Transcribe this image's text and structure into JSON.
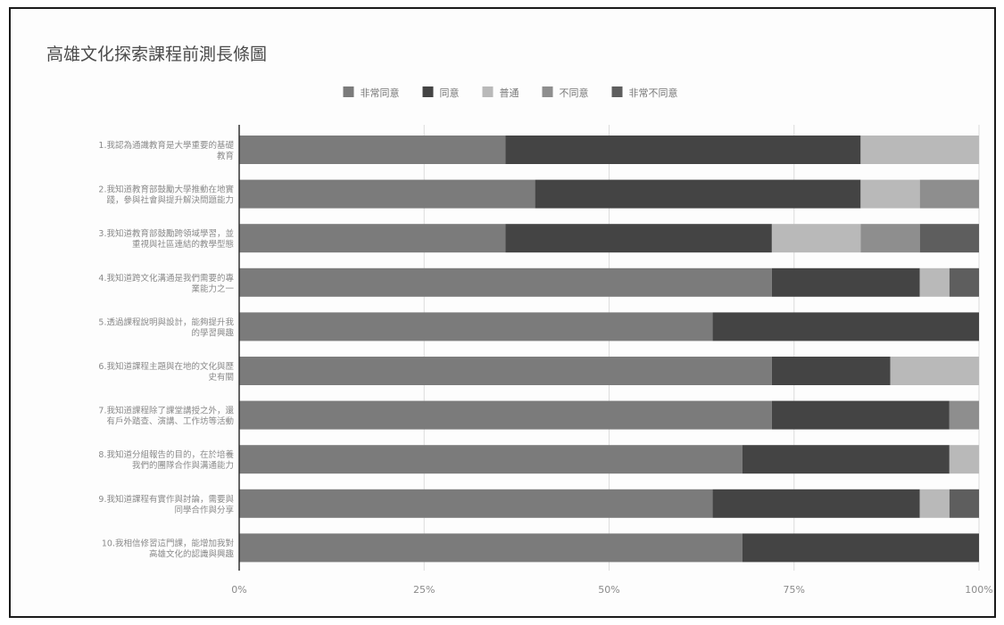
{
  "chart_data": {
    "type": "bar",
    "stacked": true,
    "percent_stacked": true,
    "orientation": "horizontal",
    "title": "高雄文化探索課程前測長條圖",
    "legend_position": "top",
    "grid": true,
    "xlim": [
      0,
      100
    ],
    "x_ticks": [
      "0%",
      "25%",
      "50%",
      "75%",
      "100%"
    ],
    "categories": [
      "1.我認為通識教育是大學重要的基礎教育",
      "2.我知道教育部鼓勵大學推動在地實踐，參與社會與提升解決問題能力",
      "3.我知道教育部鼓勵跨領域學習，並重視與社區連結的教學型態",
      "4.我知道跨文化溝通是我們需要的專業能力之一",
      "5.透過課程說明與設計，能夠提升我的學習興趣",
      "6.我知道課程主題與在地的文化與歷史有關",
      "7.我知道課程除了課堂講授之外，還有戶外踏查、演講、工作坊等活動",
      "8.我知道分組報告的目的，在於培養我們的團隊合作與溝通能力",
      "9.我知道課程有實作與討論，需要與同學合作與分享",
      "10.我相信修習這門課，能增加我對高雄文化的認識與興趣"
    ],
    "series": [
      {
        "name": "非常同意",
        "color": "#7b7b7b",
        "values": [
          36,
          40,
          36,
          72,
          64,
          72,
          72,
          68,
          64,
          68
        ]
      },
      {
        "name": "同意",
        "color": "#444444",
        "values": [
          48,
          44,
          36,
          20,
          36,
          16,
          24,
          28,
          28,
          32
        ]
      },
      {
        "name": "普通",
        "color": "#b9b9b9",
        "values": [
          16,
          8,
          12,
          4,
          0,
          12,
          0,
          4,
          4,
          0
        ]
      },
      {
        "name": "不同意",
        "color": "#8e8e8e",
        "values": [
          0,
          8,
          8,
          0,
          0,
          0,
          4,
          0,
          0,
          0
        ]
      },
      {
        "name": "非常不同意",
        "color": "#5e5e5e",
        "values": [
          0,
          0,
          8,
          4,
          0,
          0,
          0,
          0,
          4,
          0
        ]
      }
    ]
  }
}
